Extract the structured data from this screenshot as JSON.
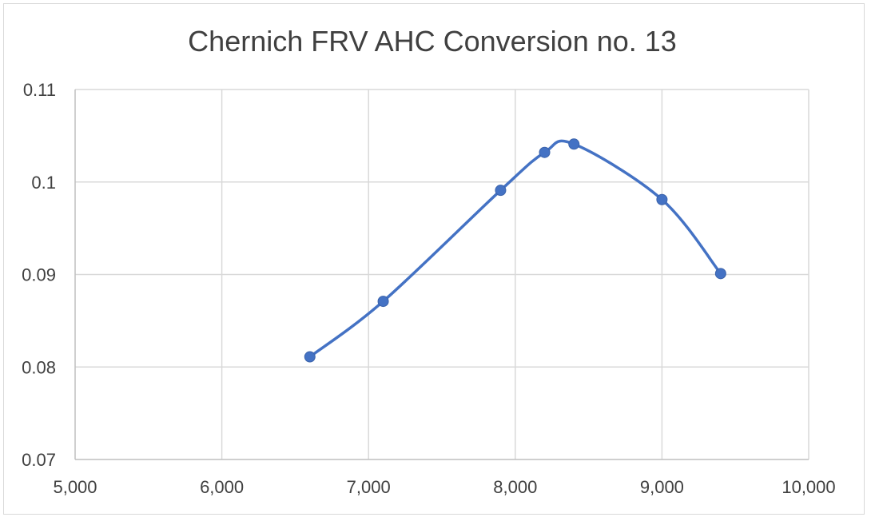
{
  "chart_data": {
    "type": "scatter",
    "title": "Chernich FRV AHC Conversion no. 13",
    "xlabel": "",
    "ylabel": "",
    "xlim": [
      5000,
      10000
    ],
    "ylim": [
      0.07,
      0.11
    ],
    "x_ticks": [
      5000,
      6000,
      7000,
      8000,
      9000,
      10000
    ],
    "x_tick_labels": [
      "5,000",
      "6,000",
      "7,000",
      "8,000",
      "9,000",
      "10,000"
    ],
    "y_ticks": [
      0.07,
      0.08,
      0.09,
      0.1,
      0.11
    ],
    "y_tick_labels": [
      "0.07",
      "0.08",
      "0.09",
      "0.1",
      "0.11"
    ],
    "grid": true,
    "legend": "none",
    "smooth_line": true,
    "series": [
      {
        "color": "#4472c4",
        "x": [
          6600,
          7100,
          7900,
          8200,
          8400,
          9000,
          9400
        ],
        "y": [
          0.0811,
          0.0871,
          0.0991,
          0.1032,
          0.1041,
          0.0981,
          0.0901
        ]
      }
    ]
  }
}
